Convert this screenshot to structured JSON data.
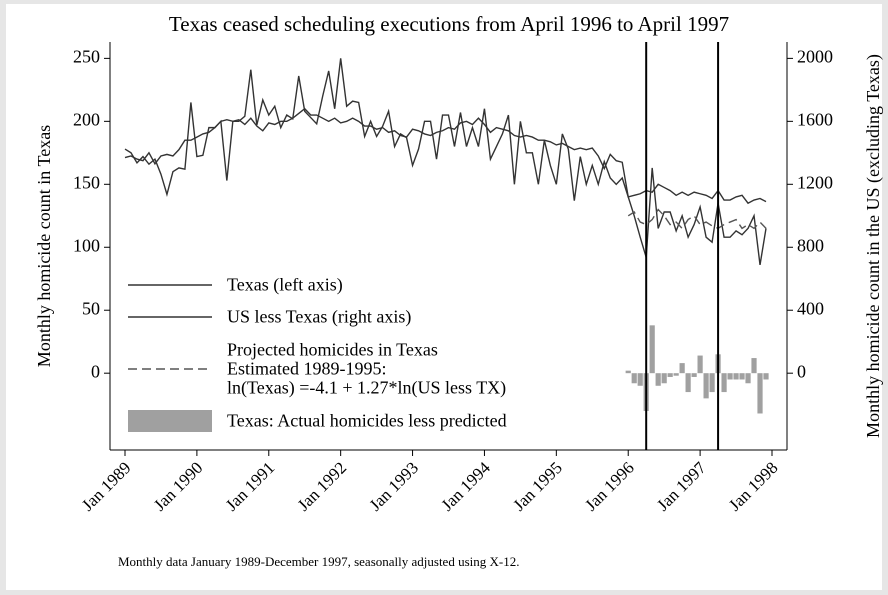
{
  "chart_data": {
    "type": "line",
    "title": "Texas ceased scheduling executions from April 1996 to April 1997",
    "ylabel": "Monthly homicide count in Texas",
    "y2label": "Monthly homicide count in the US (excluding Texas)",
    "note": "Monthly data January 1989-December 1997, seasonally adjusted using X-12.",
    "legend": "lower left",
    "x": [
      "1989-01",
      "1989-02",
      "1989-03",
      "1989-04",
      "1989-05",
      "1989-06",
      "1989-07",
      "1989-08",
      "1989-09",
      "1989-10",
      "1989-11",
      "1989-12",
      "1990-01",
      "1990-02",
      "1990-03",
      "1990-04",
      "1990-05",
      "1990-06",
      "1990-07",
      "1990-08",
      "1990-09",
      "1990-10",
      "1990-11",
      "1990-12",
      "1991-01",
      "1991-02",
      "1991-03",
      "1991-04",
      "1991-05",
      "1991-06",
      "1991-07",
      "1991-08",
      "1991-09",
      "1991-10",
      "1991-11",
      "1991-12",
      "1992-01",
      "1992-02",
      "1992-03",
      "1992-04",
      "1992-05",
      "1992-06",
      "1992-07",
      "1992-08",
      "1992-09",
      "1992-10",
      "1992-11",
      "1992-12",
      "1993-01",
      "1993-02",
      "1993-03",
      "1993-04",
      "1993-05",
      "1993-06",
      "1993-07",
      "1993-08",
      "1993-09",
      "1993-10",
      "1993-11",
      "1993-12",
      "1994-01",
      "1994-02",
      "1994-03",
      "1994-04",
      "1994-05",
      "1994-06",
      "1994-07",
      "1994-08",
      "1994-09",
      "1994-10",
      "1994-11",
      "1994-12",
      "1995-01",
      "1995-02",
      "1995-03",
      "1995-04",
      "1995-05",
      "1995-06",
      "1995-07",
      "1995-08",
      "1995-09",
      "1995-10",
      "1995-11",
      "1995-12",
      "1996-01",
      "1996-02",
      "1996-03",
      "1996-04",
      "1996-05",
      "1996-06",
      "1996-07",
      "1996-08",
      "1996-09",
      "1996-10",
      "1996-11",
      "1996-12",
      "1997-01",
      "1997-02",
      "1997-03",
      "1997-04",
      "1997-05",
      "1997-06",
      "1997-07",
      "1997-08",
      "1997-09",
      "1997-10",
      "1997-11",
      "1997-12"
    ],
    "xlim": [
      "1989-01",
      "1998-01"
    ],
    "xticks": [
      {
        "value": "1989-01",
        "label": "Jan 1989"
      },
      {
        "value": "1990-01",
        "label": "Jan 1990"
      },
      {
        "value": "1991-01",
        "label": "Jan 1991"
      },
      {
        "value": "1992-01",
        "label": "Jan 1992"
      },
      {
        "value": "1993-01",
        "label": "Jan 1993"
      },
      {
        "value": "1994-01",
        "label": "Jan 1994"
      },
      {
        "value": "1995-01",
        "label": "Jan 1995"
      },
      {
        "value": "1996-01",
        "label": "Jan 1996"
      },
      {
        "value": "1997-01",
        "label": "Jan 1997"
      },
      {
        "value": "1998-01",
        "label": "Jan 1998"
      }
    ],
    "ylim": [
      -61,
      263
    ],
    "yticks": [
      0,
      50,
      100,
      150,
      200,
      250
    ],
    "y2lim": [
      -488,
      2104
    ],
    "y2ticks": [
      0,
      400,
      800,
      1200,
      1600,
      2000
    ],
    "vlines": [
      "1996-04",
      "1997-04"
    ],
    "series": [
      {
        "name": "Texas (left axis)",
        "color": "#333333",
        "values": [
          178,
          175,
          167,
          172,
          166,
          170,
          158,
          142,
          160,
          163,
          162,
          215,
          172,
          173,
          195,
          195,
          200,
          153,
          200,
          200,
          204,
          241,
          197,
          217,
          205,
          212,
          195,
          205,
          202,
          236,
          208,
          203,
          198,
          220,
          240,
          210,
          250,
          212,
          216,
          215,
          188,
          200,
          188,
          196,
          208,
          180,
          190,
          187,
          165,
          178,
          200,
          200,
          170,
          205,
          205,
          180,
          207,
          180,
          195,
          180,
          210,
          170,
          180,
          190,
          205,
          150,
          200,
          175,
          175,
          150,
          185,
          165,
          150,
          190,
          178,
          137,
          172,
          150,
          165,
          150,
          168,
          155,
          150,
          155,
          140,
          125,
          108,
          92,
          163,
          115,
          128,
          128,
          113,
          125,
          108,
          118,
          132,
          108,
          104,
          135,
          108,
          108,
          113,
          110,
          115,
          125,
          86,
          115
        ]
      },
      {
        "name": "US less Texas (right axis)",
        "color": "#333333",
        "axis": "y2",
        "values": [
          1370,
          1380,
          1360,
          1350,
          1400,
          1330,
          1380,
          1390,
          1380,
          1420,
          1480,
          1480,
          1500,
          1520,
          1530,
          1560,
          1600,
          1610,
          1600,
          1610,
          1580,
          1620,
          1570,
          1540,
          1590,
          1580,
          1600,
          1600,
          1620,
          1650,
          1680,
          1640,
          1640,
          1620,
          1600,
          1620,
          1590,
          1600,
          1620,
          1600,
          1570,
          1570,
          1550,
          1560,
          1530,
          1540,
          1510,
          1500,
          1550,
          1540,
          1520,
          1510,
          1530,
          1540,
          1560,
          1550,
          1590,
          1600,
          1580,
          1620,
          1580,
          1530,
          1560,
          1550,
          1540,
          1510,
          1500,
          1510,
          1500,
          1480,
          1480,
          1470,
          1450,
          1460,
          1440,
          1420,
          1430,
          1420,
          1430,
          1380,
          1300,
          1390,
          1350,
          1340,
          1120,
          1130,
          1140,
          1160,
          1150,
          1200,
          1180,
          1160,
          1130,
          1150,
          1130,
          1150,
          1140,
          1130,
          1110,
          1160,
          1100,
          1100,
          1120,
          1130,
          1080,
          1100,
          1110,
          1090
        ]
      },
      {
        "name": "Projected homicides in Texas\nEstimated 1989-1995:\nln(Texas) =-4.1 + 1.27*ln(US less TX)",
        "color": "#555555",
        "dashed": true,
        "values": [
          null,
          null,
          null,
          null,
          null,
          null,
          null,
          null,
          null,
          null,
          null,
          null,
          null,
          null,
          null,
          null,
          null,
          null,
          null,
          null,
          null,
          null,
          null,
          null,
          null,
          null,
          null,
          null,
          null,
          null,
          null,
          null,
          null,
          null,
          null,
          null,
          null,
          null,
          null,
          null,
          null,
          null,
          null,
          null,
          null,
          null,
          null,
          null,
          null,
          null,
          null,
          null,
          null,
          null,
          null,
          null,
          null,
          null,
          null,
          null,
          null,
          null,
          null,
          null,
          null,
          null,
          null,
          null,
          null,
          null,
          null,
          null,
          null,
          null,
          null,
          null,
          null,
          null,
          null,
          null,
          null,
          null,
          null,
          null,
          125,
          128,
          120,
          118,
          122,
          130,
          125,
          118,
          120,
          115,
          122,
          125,
          118,
          120,
          117,
          115,
          118,
          120,
          122,
          115,
          118,
          115,
          120,
          115
        ]
      },
      {
        "name": "Texas: Actual homicides less predicted",
        "color": "#a0a0a0",
        "type": "bar",
        "values": [
          null,
          null,
          null,
          null,
          null,
          null,
          null,
          null,
          null,
          null,
          null,
          null,
          null,
          null,
          null,
          null,
          null,
          null,
          null,
          null,
          null,
          null,
          null,
          null,
          null,
          null,
          null,
          null,
          null,
          null,
          null,
          null,
          null,
          null,
          null,
          null,
          null,
          null,
          null,
          null,
          null,
          null,
          null,
          null,
          null,
          null,
          null,
          null,
          null,
          null,
          null,
          null,
          null,
          null,
          null,
          null,
          null,
          null,
          null,
          null,
          null,
          null,
          null,
          null,
          null,
          null,
          null,
          null,
          null,
          null,
          null,
          null,
          null,
          null,
          null,
          null,
          null,
          null,
          null,
          null,
          null,
          null,
          null,
          null,
          2,
          -8,
          -10,
          -30,
          38,
          -10,
          -8,
          -3,
          -2,
          8,
          -15,
          -3,
          14,
          -20,
          -15,
          15,
          -15,
          -5,
          -5,
          -5,
          -8,
          12,
          -32,
          -5
        ]
      }
    ]
  }
}
